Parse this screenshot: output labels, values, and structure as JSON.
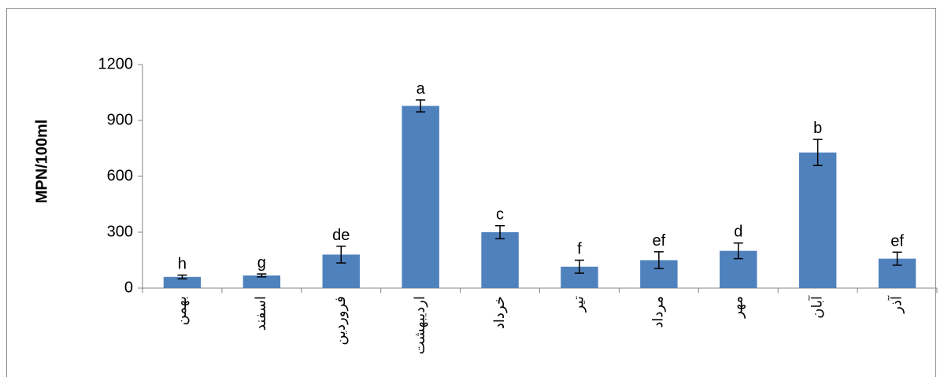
{
  "chart_data": {
    "type": "bar",
    "title": "",
    "xlabel": "",
    "ylabel": "MPN/100ml",
    "ylim": [
      0,
      1200
    ],
    "yticks": [
      0,
      300,
      600,
      900,
      1200
    ],
    "grid": false,
    "legend": "none",
    "bar_color": "#4f81bd",
    "categories": [
      "بهمن",
      "اسفند",
      "فروردین",
      "اردیبهشت",
      "خرداد",
      "تیر",
      "مرداد",
      "مهر",
      "آبان",
      "آذر"
    ],
    "values": [
      60,
      68,
      180,
      978,
      300,
      115,
      150,
      200,
      728,
      158
    ],
    "error": [
      10,
      8,
      45,
      32,
      35,
      35,
      45,
      42,
      70,
      35
    ],
    "significance_letters": [
      "h",
      "g",
      "de",
      "a",
      "c",
      "f",
      "ef",
      "d",
      "b",
      "ef"
    ]
  }
}
